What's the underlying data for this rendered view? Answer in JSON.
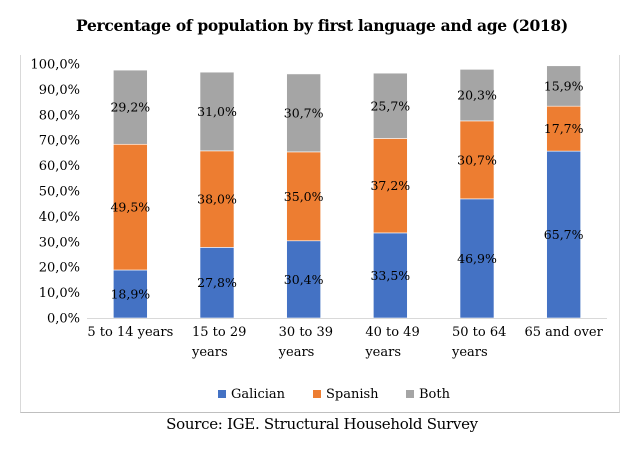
{
  "chart_data": {
    "type": "bar",
    "stacked": true,
    "title": "Percentage of population by first language and age (2018)",
    "source": "Source: IGE. Structural Household Survey",
    "xlabel": "",
    "ylabel": "",
    "ylim": [
      0,
      100
    ],
    "yticks": [
      "0,0%",
      "10,0%",
      "20,0%",
      "30,0%",
      "40,0%",
      "50,0%",
      "60,0%",
      "70,0%",
      "80,0%",
      "90,0%",
      "100,0%"
    ],
    "ytick_values": [
      0,
      10,
      20,
      30,
      40,
      50,
      60,
      70,
      80,
      90,
      100
    ],
    "categories": [
      [
        "5 to 14 years"
      ],
      [
        "15 to 29",
        "years"
      ],
      [
        "30 to 39",
        "years"
      ],
      [
        "40 to 49",
        "years"
      ],
      [
        "50 to 64",
        "years"
      ],
      [
        "65 and over"
      ]
    ],
    "series": [
      {
        "name": "Galician",
        "color": "#4472c4",
        "values": [
          18.9,
          27.8,
          30.4,
          33.5,
          46.9,
          65.7
        ],
        "labels": [
          "18,9%",
          "27,8%",
          "30,4%",
          "33,5%",
          "46,9%",
          "65,7%"
        ]
      },
      {
        "name": "Spanish",
        "color": "#ed7d31",
        "values": [
          49.5,
          38.0,
          35.0,
          37.2,
          30.7,
          17.7
        ],
        "labels": [
          "49,5%",
          "38,0%",
          "35,0%",
          "37,2%",
          "30,7%",
          "17,7%"
        ]
      },
      {
        "name": "Both",
        "color": "#a5a5a5",
        "values": [
          29.2,
          31.0,
          30.7,
          25.7,
          20.3,
          15.9
        ],
        "labels": [
          "29,2%",
          "31,0%",
          "30,7%",
          "25,7%",
          "20,3%",
          "15,9%"
        ]
      }
    ],
    "legend_position": "bottom",
    "grid": false
  }
}
